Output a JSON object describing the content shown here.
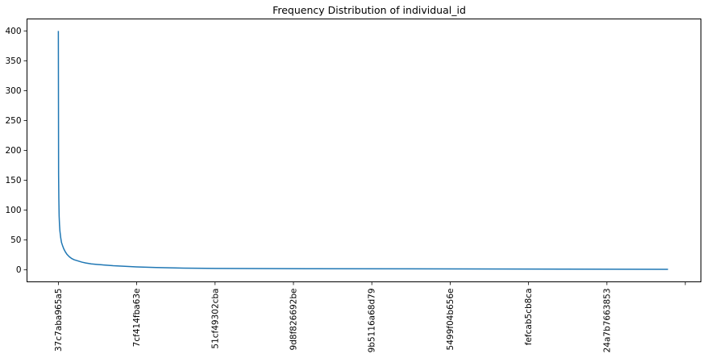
{
  "chart_data": {
    "type": "line",
    "title": "Frequency Distribution of individual_id",
    "xlabel": "",
    "ylabel": "",
    "ylim": [
      -20,
      420
    ],
    "yticks": [
      0,
      50,
      100,
      150,
      200,
      250,
      300,
      350,
      400
    ],
    "x_tick_labels": [
      "37c7aba965a5",
      "7cf414fba63e",
      "51cf49302cba",
      "9d8f826692be",
      "9b5116a68d79",
      "5499f04b656e",
      "fefcab5cb8ca",
      "24a7b7663853",
      ""
    ],
    "x_tick_positions": [
      0,
      1000,
      2000,
      3000,
      4000,
      5000,
      6000,
      7000,
      8000
    ],
    "xlim": [
      -400,
      8200
    ],
    "grid": false,
    "color": "#1f77b4",
    "series": [
      {
        "x": [
          0,
          3,
          6,
          10,
          15,
          20,
          30,
          40,
          55,
          70,
          90,
          110,
          140,
          170,
          200,
          250,
          300,
          350,
          420,
          500,
          600,
          700,
          850,
          1000,
          1250,
          1600,
          2000,
          3200,
          7780
        ],
        "values": [
          400,
          160,
          120,
          90,
          75,
          65,
          54,
          46,
          40,
          35,
          30,
          26,
          22,
          19,
          17,
          15,
          13,
          11.5,
          10,
          9,
          8,
          7,
          6,
          5,
          4,
          3,
          2.5,
          2,
          1
        ]
      }
    ]
  }
}
